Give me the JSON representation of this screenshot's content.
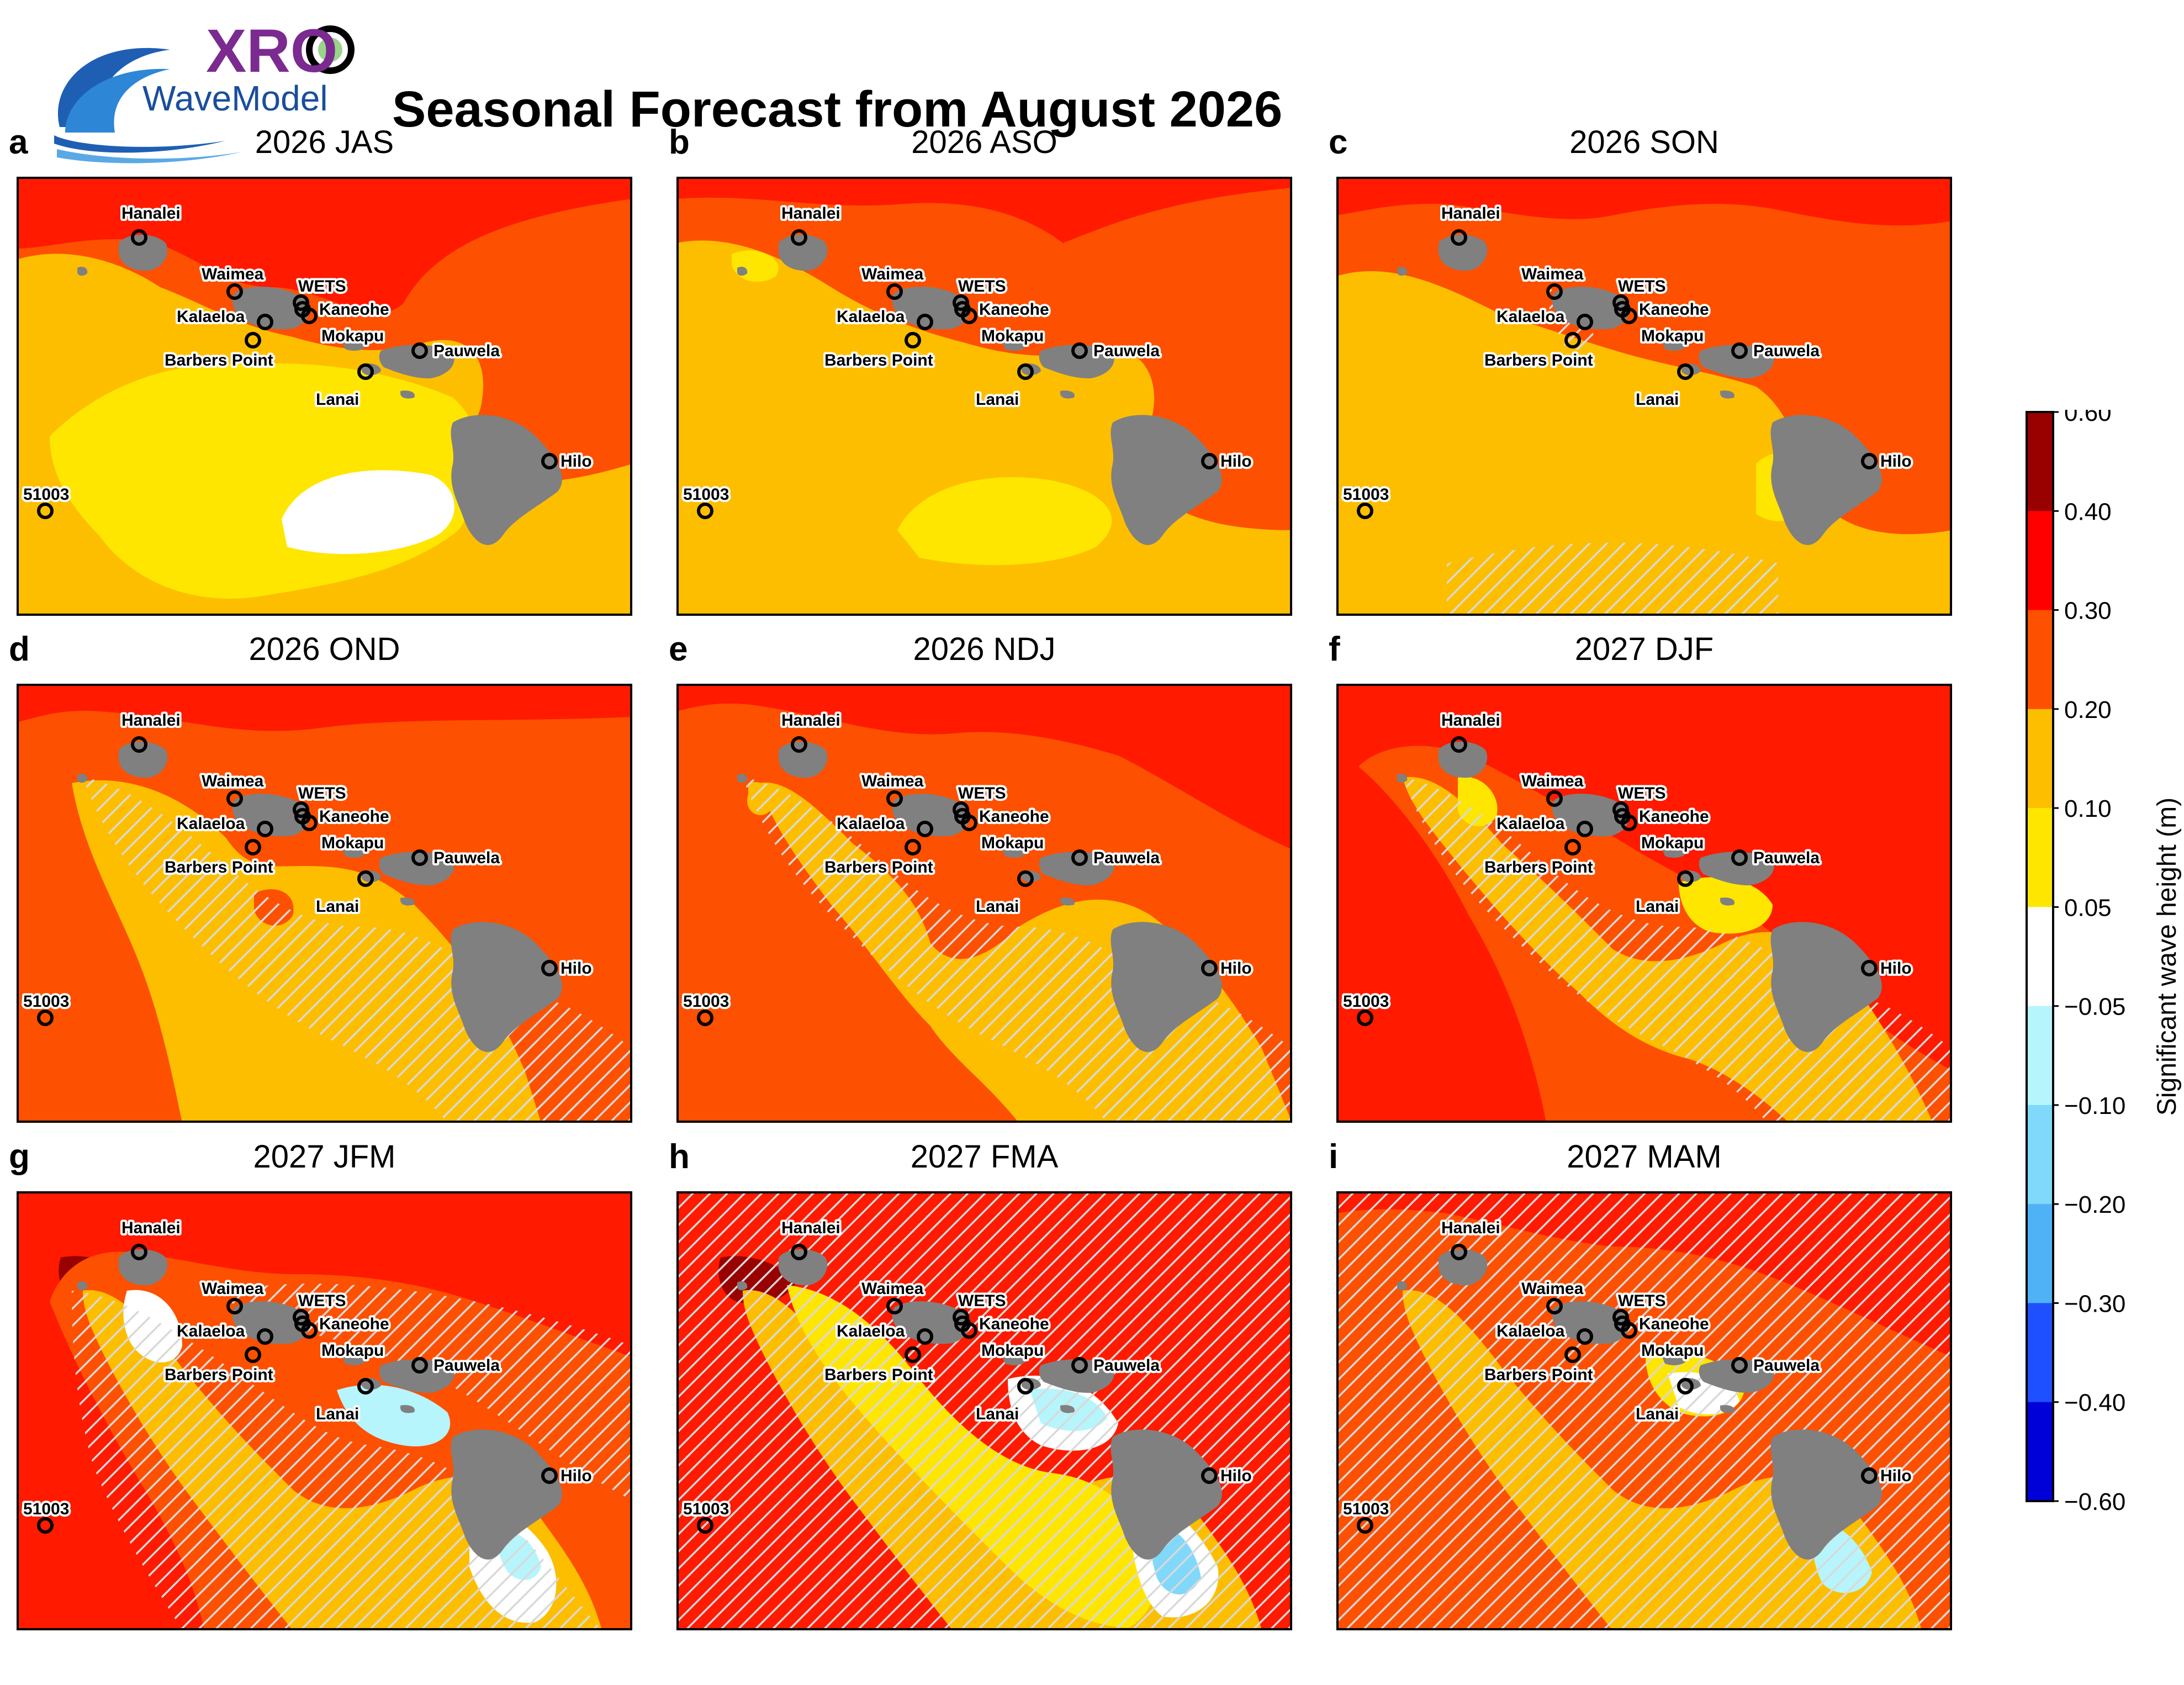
{
  "header": {
    "title": "Seasonal Forecast from August 2026",
    "logo": {
      "text_top": "XRO",
      "text_bottom": "WaveModel",
      "icon": "wave-globe-icon"
    }
  },
  "stations": [
    "Hanalei",
    "Waimea",
    "WETS",
    "Kaneohe",
    "Mokapu",
    "Kalaeloa",
    "Barbers Point",
    "Pauwela",
    "Lanai",
    "Hilo",
    "51003"
  ],
  "panels": [
    {
      "letter": "a",
      "title": "2026 JAS",
      "bg": "#fd5000",
      "hatch": "none"
    },
    {
      "letter": "b",
      "title": "2026 ASO",
      "bg": "#fd5000",
      "hatch": "none"
    },
    {
      "letter": "c",
      "title": "2026 SON",
      "bg": "#fd5000",
      "hatch": "light"
    },
    {
      "letter": "d",
      "title": "2026 OND",
      "bg": "#fd5000",
      "hatch": "medium"
    },
    {
      "letter": "e",
      "title": "2026 NDJ",
      "bg": "#fd5000",
      "hatch": "medium"
    },
    {
      "letter": "f",
      "title": "2027 DJF",
      "bg": "#ff1a00",
      "hatch": "medium"
    },
    {
      "letter": "g",
      "title": "2027 JFM",
      "bg": "#ff1a00",
      "hatch": "heavy"
    },
    {
      "letter": "h",
      "title": "2027 FMA",
      "bg": "#ff1a00",
      "hatch": "full"
    },
    {
      "letter": "i",
      "title": "2027 MAM",
      "bg": "#fd5000",
      "hatch": "full"
    }
  ],
  "colorbar": {
    "label": "Significant wave height (m)",
    "ticks": [
      "0.60",
      "0.40",
      "0.30",
      "0.20",
      "0.10",
      "0.05",
      "−0.05",
      "−0.10",
      "−0.20",
      "−0.30",
      "−0.40",
      "−0.60"
    ],
    "colors": [
      "#990000",
      "#ff0000",
      "#fd5000",
      "#fdbe00",
      "#ffe600",
      "#ffffff",
      "#b5f5fb",
      "#80d8fa",
      "#4fb2f7",
      "#1f50ff",
      "#0000d9"
    ]
  },
  "colors": {
    "land": "#808080",
    "outline": "#000000",
    "hatch": "#d9d9d9"
  }
}
